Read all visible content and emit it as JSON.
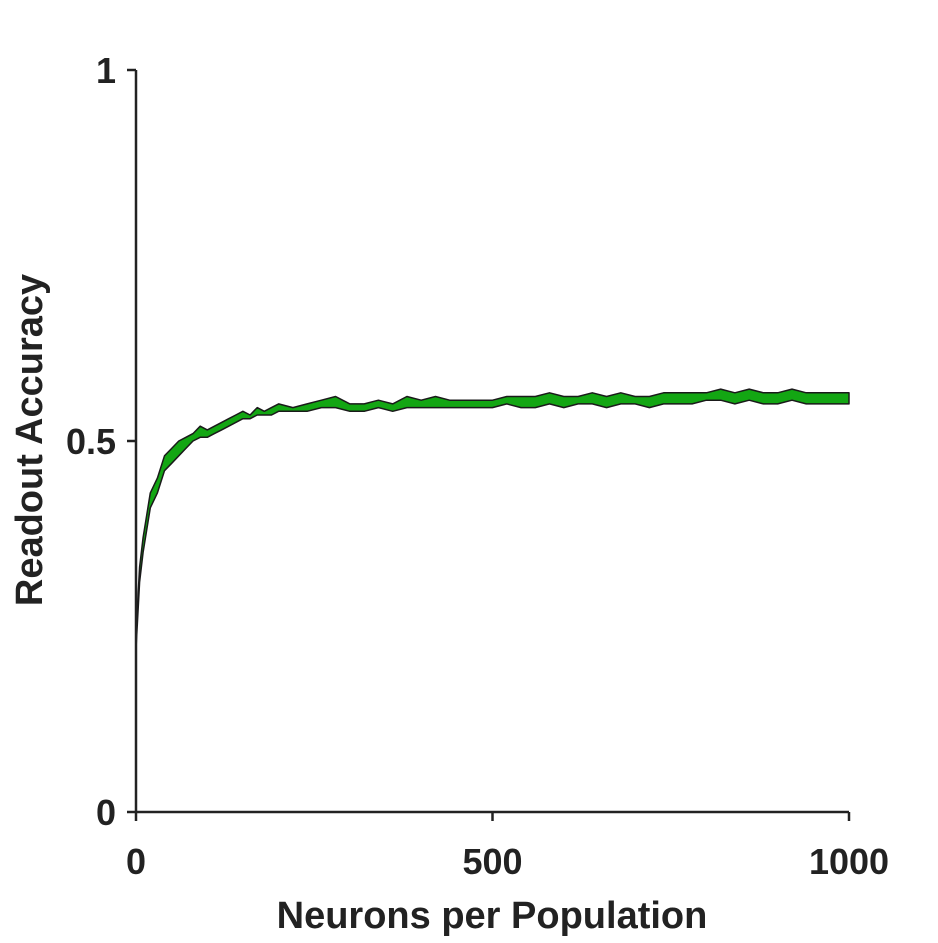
{
  "chart_data": {
    "type": "area",
    "title": "",
    "xlabel": "Neurons per Population",
    "ylabel": "Readout Accuracy",
    "xlim": [
      0,
      1000
    ],
    "ylim": [
      0,
      1
    ],
    "x_ticks": [
      0,
      500,
      1000
    ],
    "x_tick_labels": [
      "0",
      "500",
      "1000"
    ],
    "y_ticks": [
      0,
      0.5,
      1
    ],
    "y_tick_labels": [
      "0",
      "0.5",
      "1"
    ],
    "grid": false,
    "legend": "none",
    "series": [
      {
        "fill_color": "#13a613",
        "edge_color": "#1a1a1a",
        "x": [
          0,
          5,
          10,
          15,
          20,
          30,
          40,
          50,
          60,
          70,
          80,
          90,
          100,
          110,
          120,
          130,
          140,
          150,
          160,
          170,
          180,
          190,
          200,
          220,
          240,
          260,
          280,
          300,
          320,
          340,
          360,
          380,
          400,
          420,
          440,
          460,
          480,
          500,
          520,
          540,
          560,
          580,
          600,
          620,
          640,
          660,
          680,
          700,
          720,
          740,
          760,
          780,
          800,
          820,
          840,
          860,
          880,
          900,
          920,
          940,
          960,
          980,
          1000
        ],
        "y_upper": [
          0.24,
          0.33,
          0.37,
          0.4,
          0.43,
          0.45,
          0.48,
          0.49,
          0.5,
          0.505,
          0.51,
          0.52,
          0.515,
          0.52,
          0.525,
          0.53,
          0.535,
          0.54,
          0.535,
          0.545,
          0.54,
          0.545,
          0.55,
          0.545,
          0.55,
          0.555,
          0.56,
          0.55,
          0.55,
          0.555,
          0.55,
          0.56,
          0.555,
          0.56,
          0.555,
          0.555,
          0.555,
          0.555,
          0.56,
          0.56,
          0.56,
          0.565,
          0.56,
          0.56,
          0.565,
          0.56,
          0.565,
          0.56,
          0.56,
          0.565,
          0.565,
          0.565,
          0.565,
          0.57,
          0.565,
          0.57,
          0.565,
          0.565,
          0.57,
          0.565,
          0.565,
          0.565,
          0.565
        ],
        "y_lower": [
          0.22,
          0.31,
          0.35,
          0.38,
          0.41,
          0.43,
          0.46,
          0.47,
          0.48,
          0.49,
          0.5,
          0.505,
          0.505,
          0.51,
          0.515,
          0.52,
          0.525,
          0.53,
          0.53,
          0.535,
          0.535,
          0.535,
          0.54,
          0.54,
          0.54,
          0.545,
          0.545,
          0.54,
          0.54,
          0.545,
          0.54,
          0.545,
          0.545,
          0.545,
          0.545,
          0.545,
          0.545,
          0.545,
          0.55,
          0.545,
          0.545,
          0.55,
          0.545,
          0.55,
          0.55,
          0.545,
          0.55,
          0.55,
          0.545,
          0.55,
          0.55,
          0.55,
          0.555,
          0.555,
          0.55,
          0.555,
          0.55,
          0.55,
          0.555,
          0.55,
          0.55,
          0.55,
          0.55
        ]
      }
    ]
  }
}
